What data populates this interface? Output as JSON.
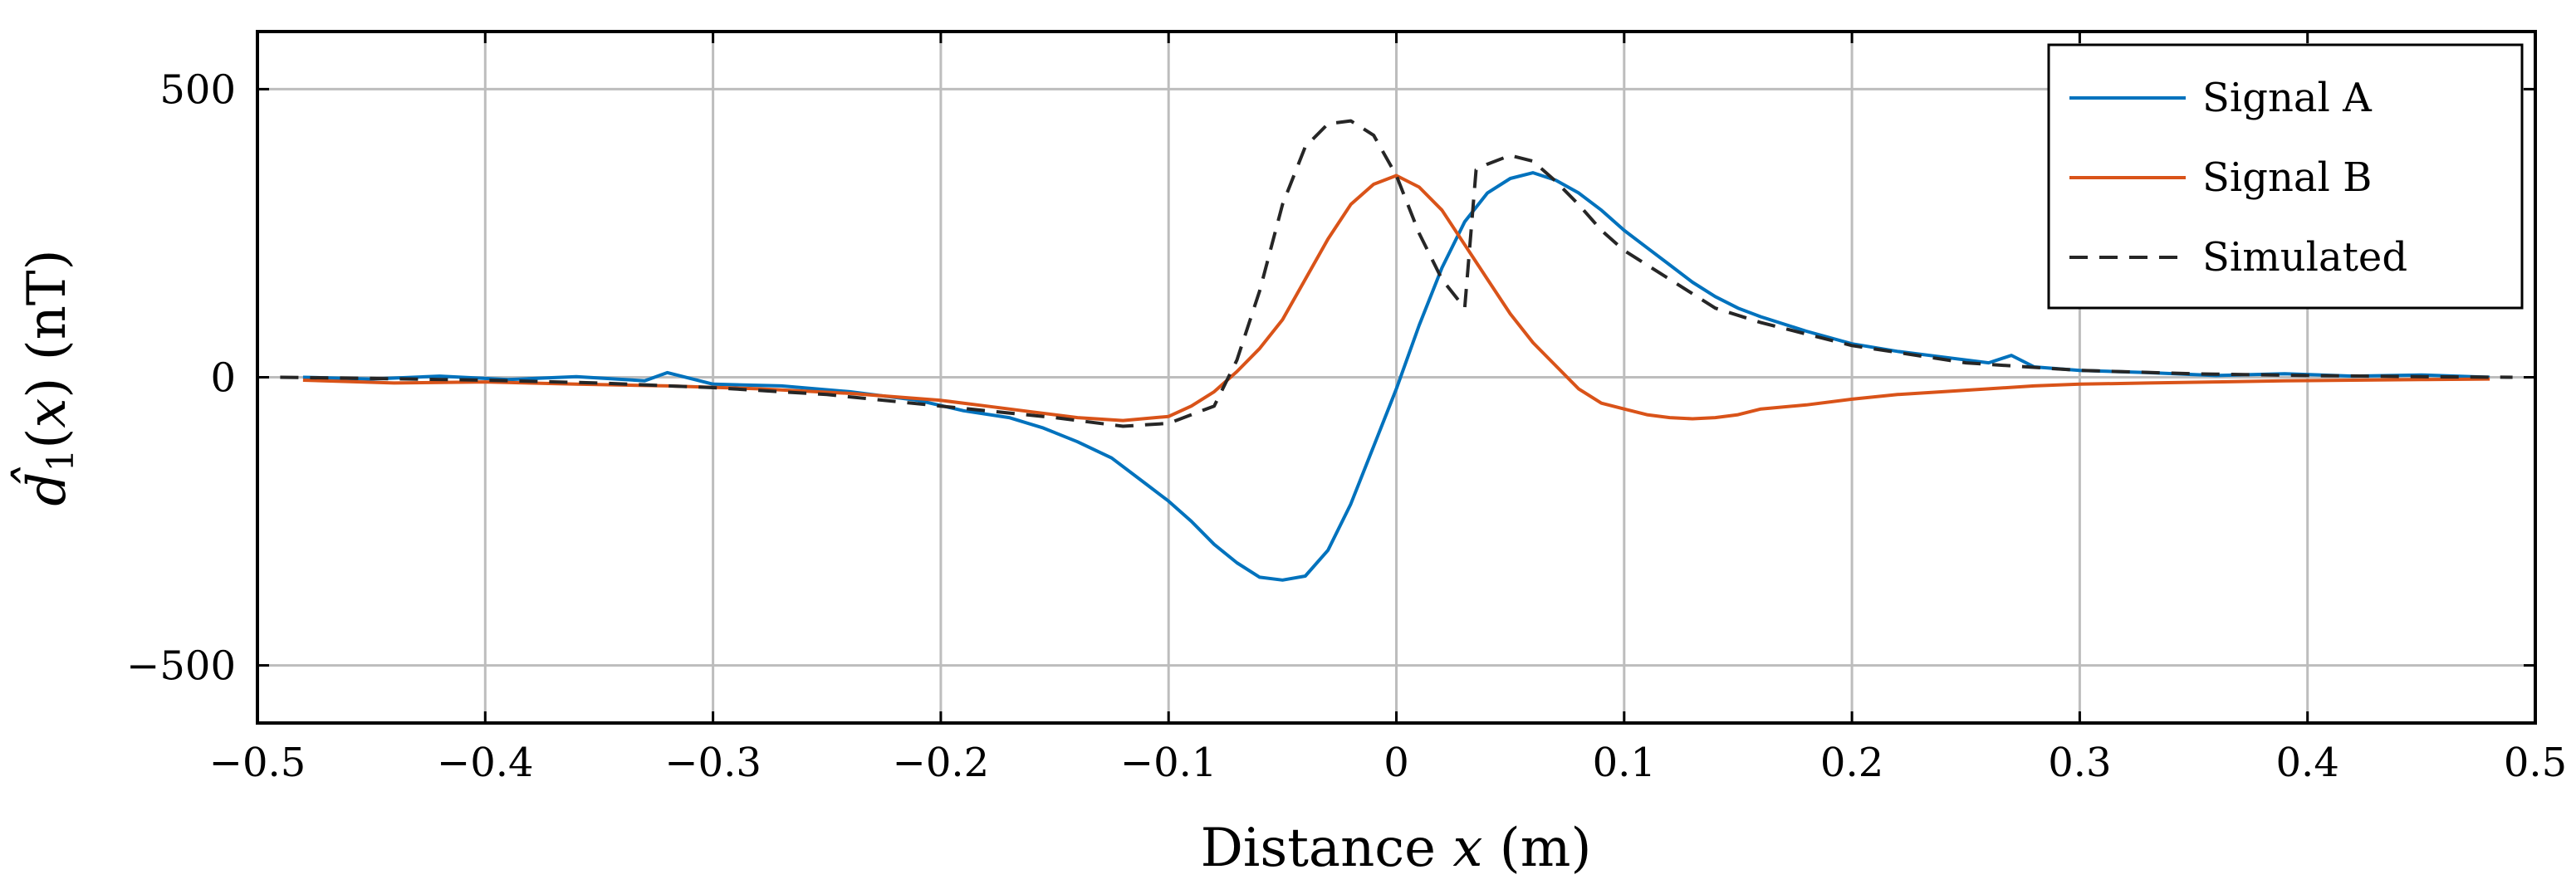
{
  "chart_data": {
    "type": "line",
    "title": "",
    "xlabel": "Distance x (m)",
    "ylabel": "d̂₁(x) (nT)",
    "xlim": [
      -0.5,
      0.5
    ],
    "ylim": [
      -600,
      600
    ],
    "xticks": [
      -0.5,
      -0.4,
      -0.3,
      -0.2,
      -0.1,
      0,
      0.1,
      0.2,
      0.3,
      0.4,
      0.5
    ],
    "xtick_labels": [
      "−0.5",
      "−0.4",
      "−0.3",
      "−0.2",
      "−0.1",
      "0",
      "0.1",
      "0.2",
      "0.3",
      "0.4",
      "0.5"
    ],
    "yticks": [
      -500,
      0,
      500
    ],
    "ytick_labels": [
      "−500",
      "0",
      "500"
    ],
    "grid": true,
    "legend_position": "top-right",
    "series": [
      {
        "name": "Signal A",
        "color": "#0072BD",
        "dash": "solid",
        "x": [
          -0.48,
          -0.45,
          -0.42,
          -0.39,
          -0.36,
          -0.33,
          -0.32,
          -0.3,
          -0.27,
          -0.24,
          -0.21,
          -0.19,
          -0.17,
          -0.155,
          -0.14,
          -0.125,
          -0.11,
          -0.1,
          -0.09,
          -0.08,
          -0.07,
          -0.06,
          -0.05,
          -0.04,
          -0.03,
          -0.02,
          -0.01,
          0,
          0.01,
          0.02,
          0.03,
          0.04,
          0.05,
          0.06,
          0.07,
          0.08,
          0.09,
          0.1,
          0.11,
          0.12,
          0.13,
          0.14,
          0.15,
          0.16,
          0.18,
          0.2,
          0.22,
          0.24,
          0.26,
          0.27,
          0.28,
          0.3,
          0.33,
          0.36,
          0.39,
          0.42,
          0.45,
          0.48
        ],
        "values": [
          0,
          -3,
          2,
          -4,
          1,
          -6,
          8,
          -12,
          -15,
          -25,
          -40,
          -58,
          -70,
          -88,
          -112,
          -140,
          -185,
          -215,
          -250,
          -290,
          -322,
          -347,
          -352,
          -345,
          -300,
          -220,
          -120,
          -20,
          90,
          190,
          270,
          320,
          345,
          355,
          342,
          320,
          290,
          255,
          225,
          195,
          165,
          140,
          120,
          105,
          80,
          58,
          45,
          35,
          25,
          38,
          18,
          12,
          8,
          3,
          6,
          2,
          4,
          0
        ]
      },
      {
        "name": "Signal B",
        "color": "#D95319",
        "dash": "solid",
        "x": [
          -0.48,
          -0.44,
          -0.4,
          -0.36,
          -0.32,
          -0.28,
          -0.24,
          -0.2,
          -0.18,
          -0.16,
          -0.14,
          -0.12,
          -0.1,
          -0.09,
          -0.08,
          -0.07,
          -0.06,
          -0.05,
          -0.04,
          -0.03,
          -0.02,
          -0.01,
          0,
          0.01,
          0.02,
          0.03,
          0.04,
          0.05,
          0.06,
          0.07,
          0.08,
          0.09,
          0.1,
          0.11,
          0.12,
          0.13,
          0.14,
          0.15,
          0.16,
          0.18,
          0.2,
          0.22,
          0.24,
          0.26,
          0.28,
          0.3,
          0.33,
          0.36,
          0.39,
          0.42,
          0.45,
          0.48
        ],
        "values": [
          -5,
          -10,
          -8,
          -12,
          -15,
          -20,
          -28,
          -40,
          -50,
          -60,
          -70,
          -75,
          -68,
          -50,
          -25,
          10,
          50,
          100,
          170,
          240,
          300,
          335,
          350,
          330,
          290,
          230,
          170,
          110,
          60,
          20,
          -20,
          -45,
          -55,
          -65,
          -70,
          -72,
          -70,
          -65,
          -55,
          -48,
          -38,
          -30,
          -25,
          -20,
          -15,
          -12,
          -10,
          -8,
          -6,
          -5,
          -4,
          -3
        ]
      },
      {
        "name": "Simulated",
        "color": "#262626",
        "dash": "dashed",
        "x": [
          -0.49,
          -0.45,
          -0.4,
          -0.35,
          -0.3,
          -0.25,
          -0.2,
          -0.15,
          -0.12,
          -0.1,
          -0.08,
          -0.07,
          -0.06,
          -0.05,
          -0.04,
          -0.03,
          -0.02,
          -0.01,
          0,
          0.01,
          0.02,
          0.03,
          0.035,
          0.04,
          0.05,
          0.06,
          0.07,
          0.08,
          0.09,
          0.1,
          0.12,
          0.14,
          0.16,
          0.2,
          0.25,
          0.3,
          0.35,
          0.4,
          0.45,
          0.49
        ],
        "values": [
          0,
          -2,
          -5,
          -10,
          -18,
          -30,
          -50,
          -70,
          -85,
          -80,
          -50,
          30,
          150,
          300,
          400,
          440,
          445,
          420,
          350,
          250,
          170,
          120,
          360,
          370,
          385,
          375,
          340,
          300,
          255,
          220,
          170,
          120,
          95,
          55,
          25,
          12,
          6,
          3,
          1,
          0
        ],
        "values_note": "piecewise trace rendered in two overlapping components"
      }
    ]
  }
}
